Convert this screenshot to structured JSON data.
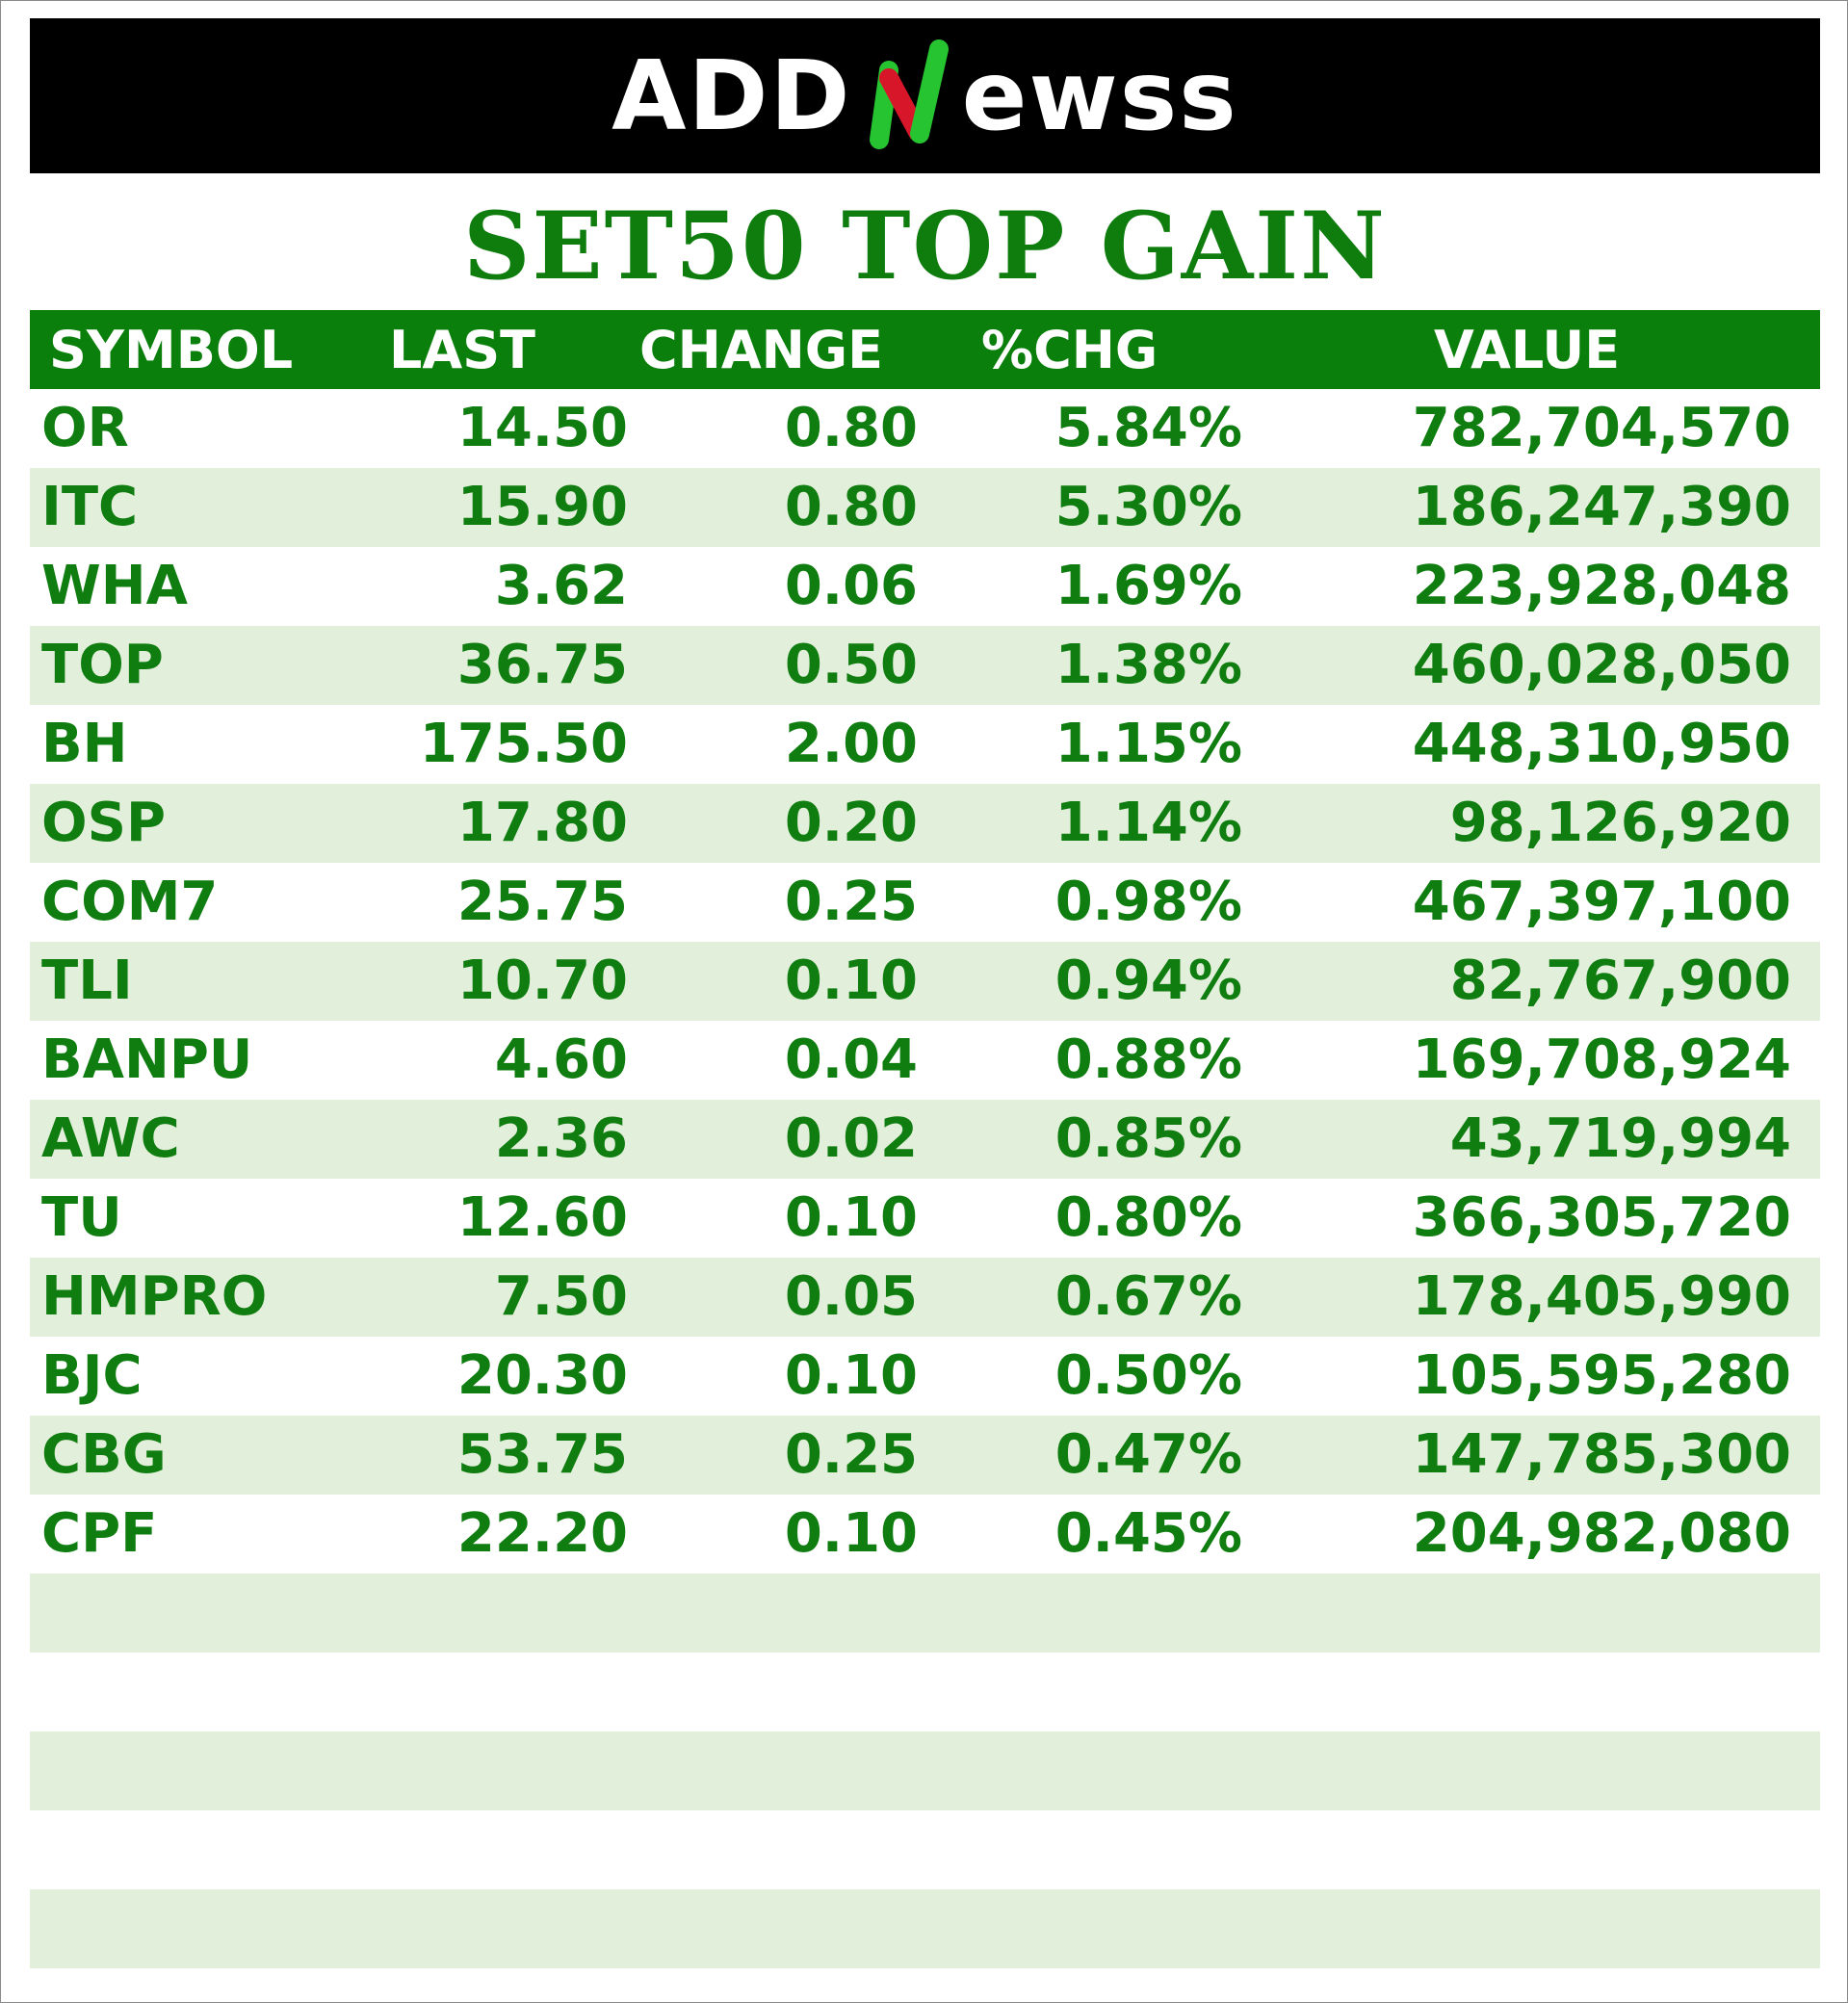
{
  "header": {
    "logo_left": "ADD",
    "logo_right": "ewss",
    "logo_colors": {
      "green": "#27c431",
      "red": "#d8162a"
    }
  },
  "title": "SET50 TOP GAIN",
  "table": {
    "columns": [
      "SYMBOL",
      "LAST",
      "CHANGE",
      "%CHG",
      "VALUE"
    ],
    "rows": [
      {
        "symbol": "OR",
        "last": "14.50",
        "change": "0.80",
        "pct": "5.84%",
        "value": "782,704,570"
      },
      {
        "symbol": "ITC",
        "last": "15.90",
        "change": "0.80",
        "pct": "5.30%",
        "value": "186,247,390"
      },
      {
        "symbol": "WHA",
        "last": "3.62",
        "change": "0.06",
        "pct": "1.69%",
        "value": "223,928,048"
      },
      {
        "symbol": "TOP",
        "last": "36.75",
        "change": "0.50",
        "pct": "1.38%",
        "value": "460,028,050"
      },
      {
        "symbol": "BH",
        "last": "175.50",
        "change": "2.00",
        "pct": "1.15%",
        "value": "448,310,950"
      },
      {
        "symbol": "OSP",
        "last": "17.80",
        "change": "0.20",
        "pct": "1.14%",
        "value": "98,126,920"
      },
      {
        "symbol": "COM7",
        "last": "25.75",
        "change": "0.25",
        "pct": "0.98%",
        "value": "467,397,100"
      },
      {
        "symbol": "TLI",
        "last": "10.70",
        "change": "0.10",
        "pct": "0.94%",
        "value": "82,767,900"
      },
      {
        "symbol": "BANPU",
        "last": "4.60",
        "change": "0.04",
        "pct": "0.88%",
        "value": "169,708,924"
      },
      {
        "symbol": "AWC",
        "last": "2.36",
        "change": "0.02",
        "pct": "0.85%",
        "value": "43,719,994"
      },
      {
        "symbol": "TU",
        "last": "12.60",
        "change": "0.10",
        "pct": "0.80%",
        "value": "366,305,720"
      },
      {
        "symbol": "HMPRO",
        "last": "7.50",
        "change": "0.05",
        "pct": "0.67%",
        "value": "178,405,990"
      },
      {
        "symbol": "BJC",
        "last": "20.30",
        "change": "0.10",
        "pct": "0.50%",
        "value": "105,595,280"
      },
      {
        "symbol": "CBG",
        "last": "53.75",
        "change": "0.25",
        "pct": "0.47%",
        "value": "147,785,300"
      },
      {
        "symbol": "CPF",
        "last": "22.20",
        "change": "0.10",
        "pct": "0.45%",
        "value": "204,982,080"
      },
      {
        "symbol": "",
        "last": "",
        "change": "",
        "pct": "",
        "value": ""
      },
      {
        "symbol": "",
        "last": "",
        "change": "",
        "pct": "",
        "value": ""
      },
      {
        "symbol": "",
        "last": "",
        "change": "",
        "pct": "",
        "value": ""
      },
      {
        "symbol": "",
        "last": "",
        "change": "",
        "pct": "",
        "value": ""
      },
      {
        "symbol": "",
        "last": "",
        "change": "",
        "pct": "",
        "value": ""
      }
    ]
  }
}
